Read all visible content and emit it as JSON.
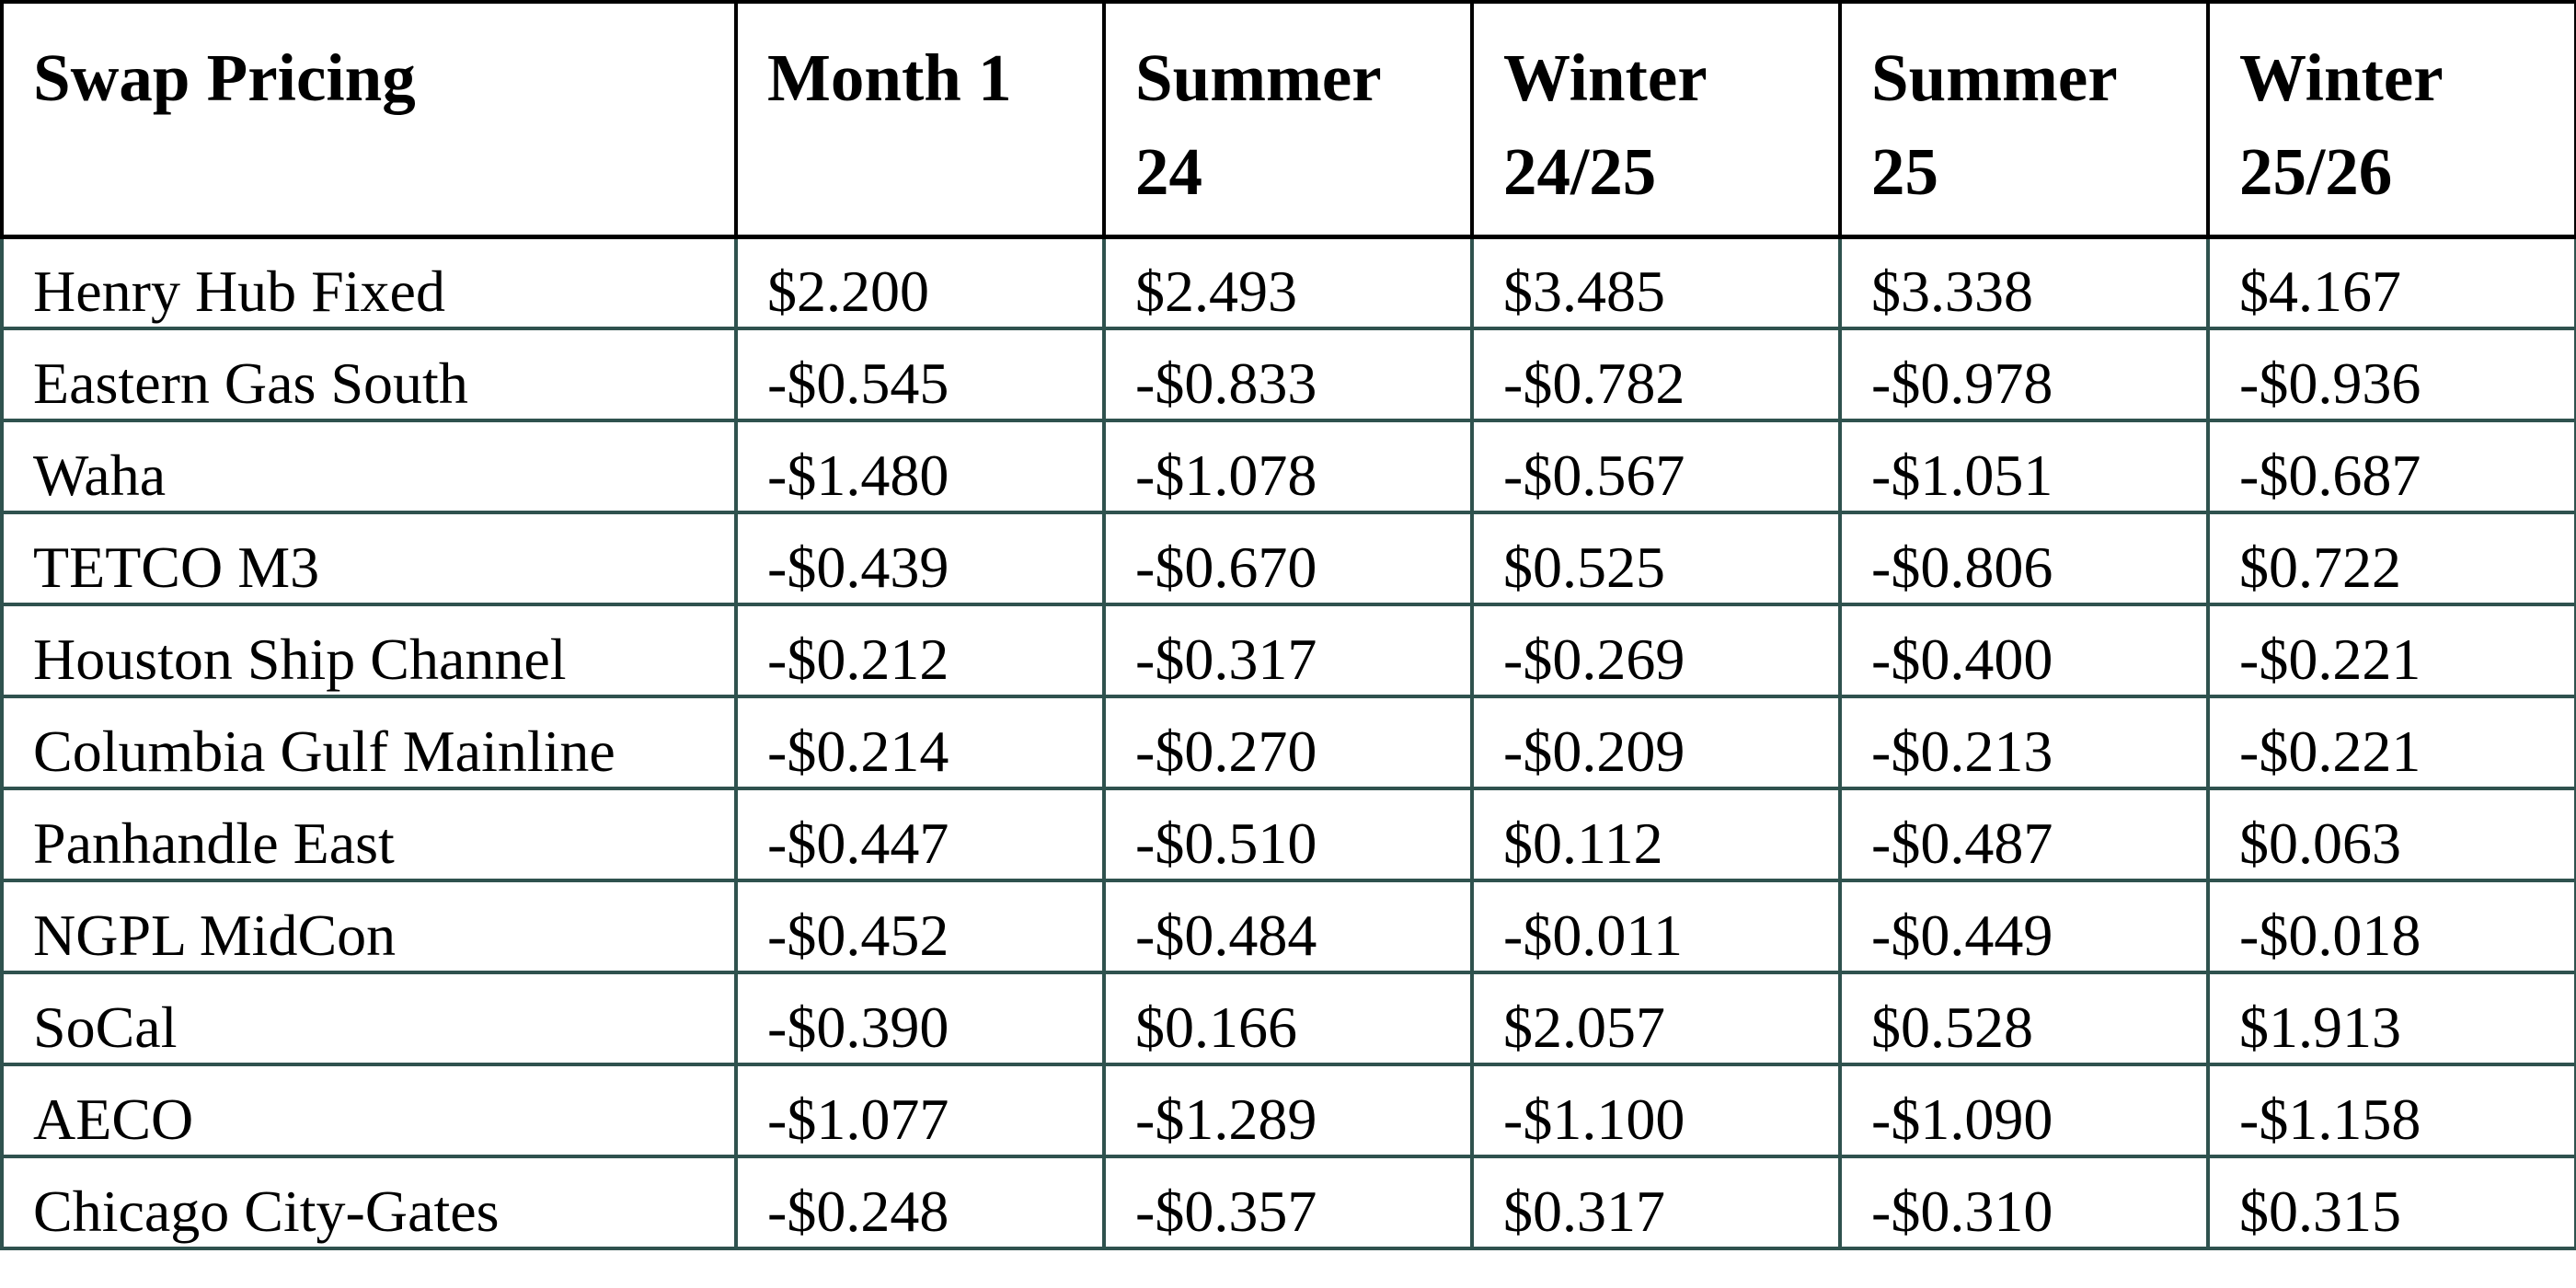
{
  "table": {
    "headers": [
      "Swap Pricing",
      "Month 1",
      "Summer 24",
      "Winter 24/25",
      "Summer 25",
      "Winter 25/26"
    ],
    "rows": [
      [
        "Henry Hub Fixed",
        "$2.200",
        "$2.493",
        "$3.485",
        "$3.338",
        "$4.167"
      ],
      [
        "Eastern Gas South",
        "-$0.545",
        "-$0.833",
        "-$0.782",
        "-$0.978",
        "-$0.936"
      ],
      [
        "Waha",
        "-$1.480",
        "-$1.078",
        "-$0.567",
        "-$1.051",
        "-$0.687"
      ],
      [
        "TETCO M3",
        "-$0.439",
        "-$0.670",
        "$0.525",
        "-$0.806",
        "$0.722"
      ],
      [
        "Houston Ship Channel",
        "-$0.212",
        "-$0.317",
        "-$0.269",
        "-$0.400",
        "-$0.221"
      ],
      [
        "Columbia Gulf Mainline",
        "-$0.214",
        "-$0.270",
        "-$0.209",
        "-$0.213",
        "-$0.221"
      ],
      [
        "Panhandle East",
        "-$0.447",
        "-$0.510",
        "$0.112",
        "-$0.487",
        "$0.063"
      ],
      [
        "NGPL MidCon",
        "-$0.452",
        "-$0.484",
        "-$0.011",
        "-$0.449",
        "-$0.018"
      ],
      [
        "SoCal",
        "-$0.390",
        "$0.166",
        "$2.057",
        "$0.528",
        "$1.913"
      ],
      [
        "AECO",
        "-$1.077",
        "-$1.289",
        "-$1.100",
        "-$1.090",
        "-$1.158"
      ],
      [
        "Chicago City-Gates",
        "-$0.248",
        "-$0.357",
        "$0.317",
        "-$0.310",
        "$0.315"
      ]
    ]
  },
  "colors": {
    "header_border": "#000000",
    "body_border": "#2f524e"
  }
}
